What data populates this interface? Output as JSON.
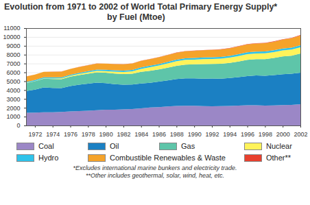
{
  "chart_data": {
    "type": "area",
    "stacked": true,
    "grid": true,
    "legend": "bottom",
    "title": "Evolution from 1971 to 2002 of World Total Primary Energy Supply*",
    "subtitle": "by Fuel (Mtoe)",
    "footnotes": [
      "*Excludes international marine bunkers and electricity trade.",
      "**Other includes geothermal, solar, wind, heat, etc."
    ],
    "x": [
      1971,
      1972,
      1973,
      1974,
      1975,
      1976,
      1977,
      1978,
      1979,
      1980,
      1981,
      1982,
      1983,
      1984,
      1985,
      1986,
      1987,
      1988,
      1989,
      1990,
      1991,
      1992,
      1993,
      1994,
      1995,
      1996,
      1997,
      1998,
      1999,
      2000,
      2001,
      2002
    ],
    "xlim": [
      1971,
      2002
    ],
    "xticks": [
      1972,
      1974,
      1976,
      1978,
      1980,
      1982,
      1984,
      1986,
      1988,
      1990,
      1992,
      1994,
      1996,
      1998,
      2000,
      2002
    ],
    "ylim": [
      0,
      11000
    ],
    "yticks": [
      0,
      1000,
      2000,
      3000,
      4000,
      5000,
      6000,
      7000,
      8000,
      9000,
      10000,
      11000
    ],
    "series": [
      {
        "name": "Coal",
        "color": "#9b87c6",
        "values": [
          1440,
          1450,
          1500,
          1500,
          1530,
          1580,
          1630,
          1660,
          1730,
          1780,
          1790,
          1820,
          1860,
          1940,
          2030,
          2080,
          2150,
          2200,
          2220,
          2220,
          2180,
          2170,
          2180,
          2200,
          2250,
          2280,
          2290,
          2250,
          2260,
          2300,
          2330,
          2400
        ]
      },
      {
        "name": "Oil",
        "color": "#1b80c3",
        "values": [
          2450,
          2600,
          2800,
          2750,
          2700,
          2880,
          2980,
          3070,
          3110,
          3000,
          2880,
          2790,
          2760,
          2810,
          2800,
          2880,
          2940,
          3040,
          3100,
          3100,
          3110,
          3130,
          3100,
          3160,
          3220,
          3290,
          3360,
          3370,
          3440,
          3500,
          3520,
          3570
        ]
      },
      {
        "name": "Gas",
        "color": "#5ec5a9",
        "values": [
          900,
          940,
          980,
          1000,
          1000,
          1050,
          1080,
          1110,
          1170,
          1180,
          1200,
          1200,
          1220,
          1310,
          1350,
          1370,
          1440,
          1500,
          1560,
          1600,
          1650,
          1660,
          1690,
          1700,
          1760,
          1850,
          1850,
          1880,
          1930,
          2000,
          2040,
          2170
        ]
      },
      {
        "name": "Nuclear",
        "color": "#fff35a",
        "values": [
          30,
          35,
          50,
          65,
          90,
          105,
          130,
          155,
          165,
          185,
          215,
          240,
          280,
          340,
          400,
          440,
          480,
          520,
          530,
          525,
          555,
          560,
          580,
          600,
          620,
          640,
          630,
          650,
          660,
          675,
          690,
          695
        ]
      },
      {
        "name": "Hydro",
        "color": "#2fc3ea",
        "values": [
          105,
          110,
          112,
          122,
          125,
          127,
          130,
          136,
          140,
          147,
          150,
          153,
          160,
          165,
          170,
          172,
          174,
          178,
          178,
          184,
          189,
          190,
          198,
          199,
          206,
          210,
          214,
          215,
          220,
          225,
          220,
          223
        ]
      },
      {
        "name": "Combustible Renewables & Waste",
        "color": "#f5a32a",
        "values": [
          600,
          610,
          620,
          630,
          640,
          650,
          660,
          670,
          680,
          690,
          700,
          710,
          720,
          735,
          745,
          760,
          770,
          780,
          790,
          800,
          810,
          825,
          840,
          860,
          870,
          890,
          910,
          930,
          950,
          1000,
          1050,
          1110
        ]
      },
      {
        "name": "Other**",
        "color": "#e8402e",
        "values": [
          5,
          5,
          6,
          6,
          7,
          7,
          8,
          8,
          9,
          10,
          12,
          14,
          16,
          18,
          20,
          22,
          24,
          26,
          28,
          30,
          32,
          34,
          36,
          37,
          38,
          40,
          42,
          44,
          46,
          48,
          52,
          55
        ]
      }
    ]
  }
}
